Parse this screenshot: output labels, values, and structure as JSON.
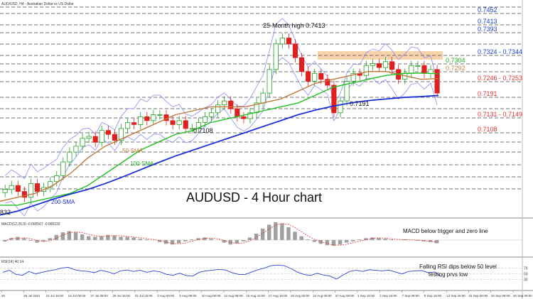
{
  "header": {
    "title": "AUD/USD, H4 - Australian Dollar vs US Dollar",
    "macd_label": "MACD(12,26,9) -0.000567 -0.000233",
    "rsi_label": "RSI(14) 40.14"
  },
  "annotations": {
    "main_title": "AUDUSD - 4 Hour chart",
    "high_label": "25-Month high 0.7413",
    "low_mid_label": "0.7191",
    "low_left_label": "0.7108",
    "left_edge_label": "832",
    "sma50_label": "50-SMA",
    "sma100_label": "100-SMA",
    "sma200_label": "200-SMA",
    "macd_note": "MACD below trigger and zero line",
    "rsi_note_1": "Falling RSI dips below 50 level",
    "rsi_note_2": "testing prvs low"
  },
  "levels": [
    {
      "label": "0.7452",
      "color": "#1a3fd6"
    },
    {
      "label": "0.7413",
      "color": "#1a3fd6"
    },
    {
      "label": "0.7393",
      "color": "#1a3fd6"
    },
    {
      "label": "0.7324 - 0.7344",
      "color": "#1a3fd6"
    },
    {
      "label": "0.7304",
      "color": "#22b022"
    },
    {
      "label": "0.7292",
      "color": "#d08040"
    },
    {
      "label": "0.7246 - 0.7253",
      "color": "#e03030"
    },
    {
      "label": "0.7191",
      "color": "#e03030"
    },
    {
      "label": "0.7131 - 0.7149",
      "color": "#e03030"
    },
    {
      "label": "0.7108",
      "color": "#e03030"
    }
  ],
  "time_axis": [
    "20",
    "26 Jul 2021",
    "21 Jul 16:00",
    "24 Jul 00:00",
    "27 Jul 08:00",
    "29 Jul 16:00",
    "31 Jul 16:00",
    "3 Aug 00:00",
    "5 Aug 08:00",
    "10 Aug 00:00",
    "12 Aug 08:00",
    "16 Aug 16:00",
    "17 Aug 16:00",
    "20 Aug 00:00",
    "24 Aug 08:00",
    "27 Aug 08:00",
    "1 Sep 16:00",
    "3 Sep 16:00",
    "7 Sep 08:00",
    "9 Sep 16:00",
    "13 Sep 16:00",
    "15 Sep 00:00",
    "16 Sep 08:00",
    "20 Sep 00:00"
  ],
  "colors": {
    "sma50": "#c0783c",
    "sma100": "#22c022",
    "sma200": "#1a2fd6",
    "bollinger": "#8c8cf0",
    "candle_up": "#22a022",
    "candle_down": "#e02020",
    "zone": "#f5c896"
  },
  "chart_data": [
    {
      "type": "line",
      "title": "AUDUSD - 4 Hour chart",
      "price_range": [
        0.695,
        0.747
      ],
      "series": [
        {
          "name": "50-SMA",
          "values": [
            0.698,
            0.699,
            0.7,
            0.702,
            0.705,
            0.709,
            0.712,
            0.714,
            0.716,
            0.718,
            0.72,
            0.721,
            0.722,
            0.722,
            0.722,
            0.723,
            0.724,
            0.726,
            0.728,
            0.729,
            0.73,
            0.731,
            0.731,
            0.73,
            0.729,
            0.7292
          ]
        },
        {
          "name": "100-SMA",
          "values": [
            0.697,
            0.697,
            0.698,
            0.699,
            0.7,
            0.702,
            0.705,
            0.708,
            0.711,
            0.713,
            0.715,
            0.716,
            0.718,
            0.719,
            0.72,
            0.721,
            0.722,
            0.723,
            0.725,
            0.727,
            0.728,
            0.729,
            0.73,
            0.7305,
            0.7306,
            0.7304
          ]
        },
        {
          "name": "200-SMA",
          "values": [
            0.6945,
            0.6955,
            0.697,
            0.6985,
            0.6998,
            0.701,
            0.7025,
            0.7042,
            0.706,
            0.7078,
            0.7095,
            0.711,
            0.7125,
            0.714,
            0.7155,
            0.717,
            0.7185,
            0.72,
            0.7212,
            0.7222,
            0.723,
            0.7236,
            0.724,
            0.7244,
            0.7246,
            0.7249
          ]
        }
      ],
      "candles_close": [
        0.701,
        0.702,
        0.7005,
        0.699,
        0.7025,
        0.7005,
        0.7015,
        0.703,
        0.7045,
        0.708,
        0.7105,
        0.712,
        0.714,
        0.7145,
        0.713,
        0.716,
        0.715,
        0.7135,
        0.7165,
        0.718,
        0.7175,
        0.7195,
        0.7185,
        0.72,
        0.72,
        0.7185,
        0.7175,
        0.7185,
        0.7165,
        0.7165,
        0.718,
        0.7195,
        0.7205,
        0.7225,
        0.7235,
        0.7215,
        0.7195,
        0.719,
        0.7205,
        0.723,
        0.7255,
        0.7315,
        0.738,
        0.7395,
        0.738,
        0.7345,
        0.731,
        0.7285,
        0.7305,
        0.729,
        0.7275,
        0.7205,
        0.7235,
        0.7285,
        0.7305,
        0.73,
        0.7325,
        0.733,
        0.732,
        0.7335,
        0.7315,
        0.729,
        0.7305,
        0.7325,
        0.7325,
        0.7305,
        0.7315,
        0.7255
      ]
    },
    {
      "type": "bar",
      "title": "MACD(12,26,9) -0.000567 -0.000233",
      "values": [
        -0.2,
        0.3,
        0.5,
        0.3,
        -0.1,
        -0.4,
        -0.2,
        0.3,
        0.8,
        1.2,
        1.4,
        1.2,
        0.9,
        0.6,
        0.5,
        0.6,
        0.8,
        0.7,
        0.5,
        0.5,
        0.4,
        0.2,
        0.1,
        0.0,
        -0.3,
        -0.6,
        -0.7,
        -0.5,
        -0.2,
        0.1,
        0.3,
        0.4,
        0.2,
        0.0,
        -0.4,
        -0.7,
        -0.5,
        -0.2,
        0.4,
        1.0,
        1.8,
        2.4,
        2.8,
        2.6,
        2.0,
        1.3,
        0.6,
        0.1,
        -0.3,
        -0.6,
        -0.8,
        -0.9,
        -0.7,
        -0.4,
        -0.2,
        0.1,
        0.3,
        0.4,
        0.3,
        0.2,
        0.1,
        0.0,
        0.1,
        0.0,
        -0.1,
        -0.2,
        -0.3,
        -0.5
      ]
    },
    {
      "type": "line",
      "title": "RSI(14) 40.14",
      "ylim": [
        0,
        100
      ],
      "ticks": [
        "70",
        "50",
        "30"
      ],
      "values": [
        55,
        62,
        48,
        45,
        58,
        50,
        55,
        60,
        64,
        70,
        72,
        64,
        60,
        58,
        54,
        62,
        57,
        50,
        60,
        63,
        58,
        62,
        55,
        60,
        57,
        48,
        45,
        52,
        44,
        42,
        55,
        60,
        62,
        65,
        63,
        54,
        48,
        47,
        56,
        64,
        70,
        78,
        80,
        78,
        68,
        56,
        48,
        44,
        52,
        46,
        42,
        32,
        46,
        58,
        62,
        58,
        64,
        62,
        60,
        63,
        56,
        50,
        58,
        60,
        61,
        54,
        56,
        40
      ]
    }
  ]
}
